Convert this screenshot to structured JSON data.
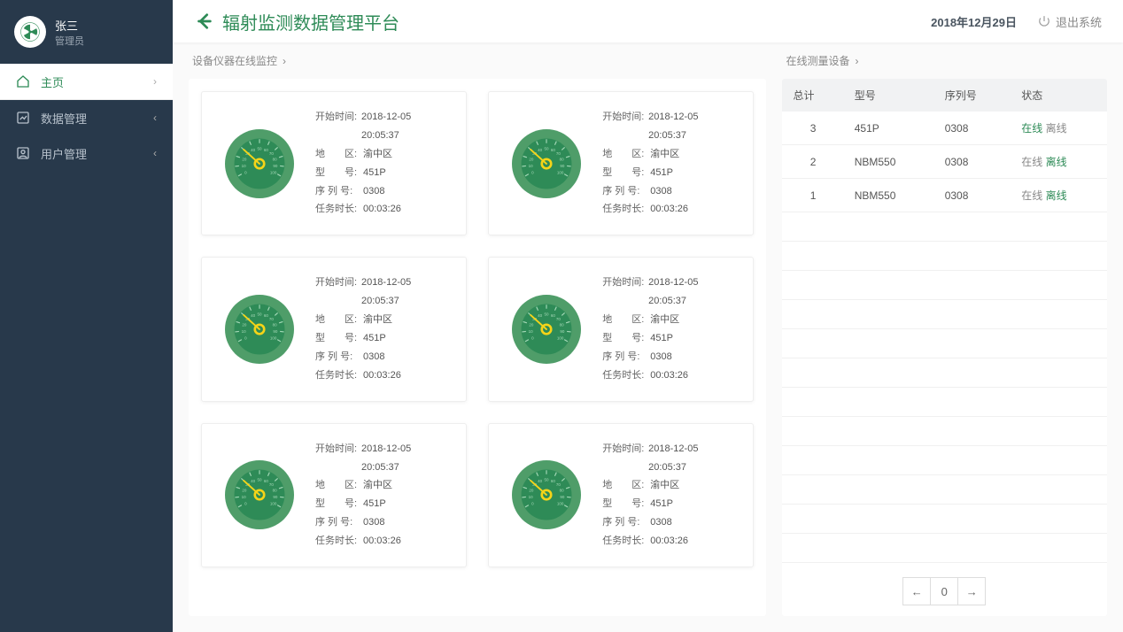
{
  "colors": {
    "brand": "#2e8b57",
    "sidebar_bg": "#28394b",
    "gauge_outer": "#4f9d69",
    "gauge_inner": "#2e8b57",
    "gauge_needle": "#f5d418",
    "gauge_tick": "#a6d9b8"
  },
  "user": {
    "name": "张三",
    "role": "管理员"
  },
  "brand_title": "辐射监测数据管理平台",
  "date": "2018年12月29日",
  "logout_label": "退出系统",
  "menu": [
    {
      "label": "主页",
      "icon": "home",
      "chev": "›",
      "active": true
    },
    {
      "label": "数据管理",
      "icon": "chart",
      "chev": "‹",
      "active": false
    },
    {
      "label": "用户管理",
      "icon": "user",
      "chev": "‹",
      "active": false
    }
  ],
  "sections": {
    "monitoring_title": "设备仪器在线监控",
    "devices_title": "在线测量设备"
  },
  "gauge": {
    "range": {
      "min": 0,
      "max": 100
    },
    "ticks": [
      0,
      10,
      20,
      30,
      40,
      50,
      60,
      70,
      80,
      90,
      100
    ]
  },
  "gauge_field_labels": {
    "start_time": "开始时间:",
    "region": "地　　区:",
    "model": "型　　号:",
    "serial": "序 列 号:",
    "duration": "任务时长:"
  },
  "gauge_cards": [
    {
      "value": 30,
      "start_time": "2018-12-05 20:05:37",
      "region": "渝中区",
      "model": "451P",
      "serial": "0308",
      "duration": "00:03:26"
    },
    {
      "value": 30,
      "start_time": "2018-12-05 20:05:37",
      "region": "渝中区",
      "model": "451P",
      "serial": "0308",
      "duration": "00:03:26"
    },
    {
      "value": 30,
      "start_time": "2018-12-05 20:05:37",
      "region": "渝中区",
      "model": "451P",
      "serial": "0308",
      "duration": "00:03:26"
    },
    {
      "value": 30,
      "start_time": "2018-12-05 20:05:37",
      "region": "渝中区",
      "model": "451P",
      "serial": "0308",
      "duration": "00:03:26"
    },
    {
      "value": 30,
      "start_time": "2018-12-05 20:05:37",
      "region": "渝中区",
      "model": "451P",
      "serial": "0308",
      "duration": "00:03:26"
    },
    {
      "value": 30,
      "start_time": "2018-12-05 20:05:37",
      "region": "渝中区",
      "model": "451P",
      "serial": "0308",
      "duration": "00:03:26"
    }
  ],
  "table": {
    "columns": [
      "总计",
      "型号",
      "序列号",
      "状态"
    ],
    "status_labels": {
      "online": "在线",
      "offline": "离线"
    },
    "rows": [
      {
        "total": "3",
        "model": "451P",
        "serial": "0308",
        "online_active": true,
        "offline_active": false
      },
      {
        "total": "2",
        "model": "NBM550",
        "serial": "0308",
        "online_active": false,
        "offline_active": true
      },
      {
        "total": "1",
        "model": "NBM550",
        "serial": "0308",
        "online_active": false,
        "offline_active": true
      }
    ],
    "empty_rows": 13
  },
  "pager": {
    "prev": "←",
    "page": "0",
    "next": "→"
  }
}
